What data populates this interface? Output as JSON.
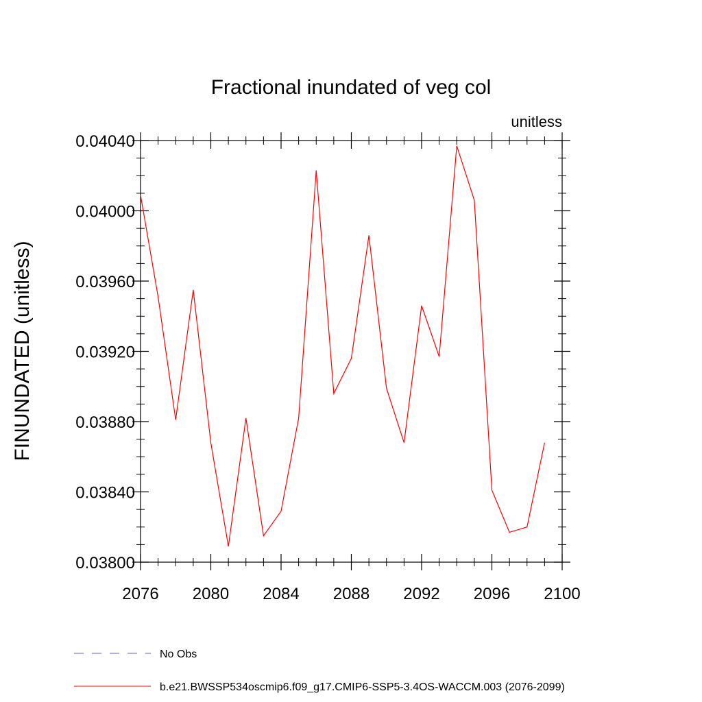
{
  "chart_data": {
    "type": "line",
    "title": "Fractional inundated of veg col",
    "units_label": "unitless",
    "ylabel": "FINUNDATED  (unitless)",
    "xlabel": "",
    "xlim": [
      2076,
      2100
    ],
    "ylim": [
      0.038,
      0.0404
    ],
    "x_ticks": [
      2076,
      2080,
      2084,
      2088,
      2092,
      2096,
      2100
    ],
    "x_tick_labels": [
      "2076",
      "2080",
      "2084",
      "2088",
      "2092",
      "2096",
      "2100"
    ],
    "y_ticks": [
      0.038,
      0.0384,
      0.0388,
      0.0392,
      0.0396,
      0.04,
      0.0404
    ],
    "y_tick_labels": [
      "0.03800",
      "0.03840",
      "0.03880",
      "0.03920",
      "0.03960",
      "0.04000",
      "0.04040"
    ],
    "grid": false,
    "legend_position": "bottom",
    "series": [
      {
        "name": "b.e21.BWSSP534oscmip6.f09_g17.CMIP6-SSP5-3.4OS-WACCM.003 (2076-2099)",
        "color": "#ff0000",
        "style": "solid",
        "x": [
          2076,
          2077,
          2078,
          2079,
          2080,
          2081,
          2082,
          2083,
          2084,
          2085,
          2086,
          2087,
          2088,
          2089,
          2090,
          2091,
          2092,
          2093,
          2094,
          2095,
          2096,
          2097,
          2098,
          2099
        ],
        "values": [
          0.04009,
          0.03951,
          0.03881,
          0.03955,
          0.03868,
          0.03809,
          0.03882,
          0.03815,
          0.03829,
          0.03882,
          0.04023,
          0.03896,
          0.03916,
          0.03986,
          0.03899,
          0.03868,
          0.03946,
          0.03917,
          0.04037,
          0.04006,
          0.03841,
          0.03817,
          0.0382,
          0.03868
        ]
      }
    ],
    "legend": [
      {
        "label": "No Obs",
        "color": "#6a5acd",
        "style": "dashed"
      },
      {
        "label": "b.e21.BWSSP534oscmip6.f09_g17.CMIP6-SSP5-3.4OS-WACCM.003 (2076-2099)",
        "color": "#ff0000",
        "style": "solid"
      }
    ]
  }
}
